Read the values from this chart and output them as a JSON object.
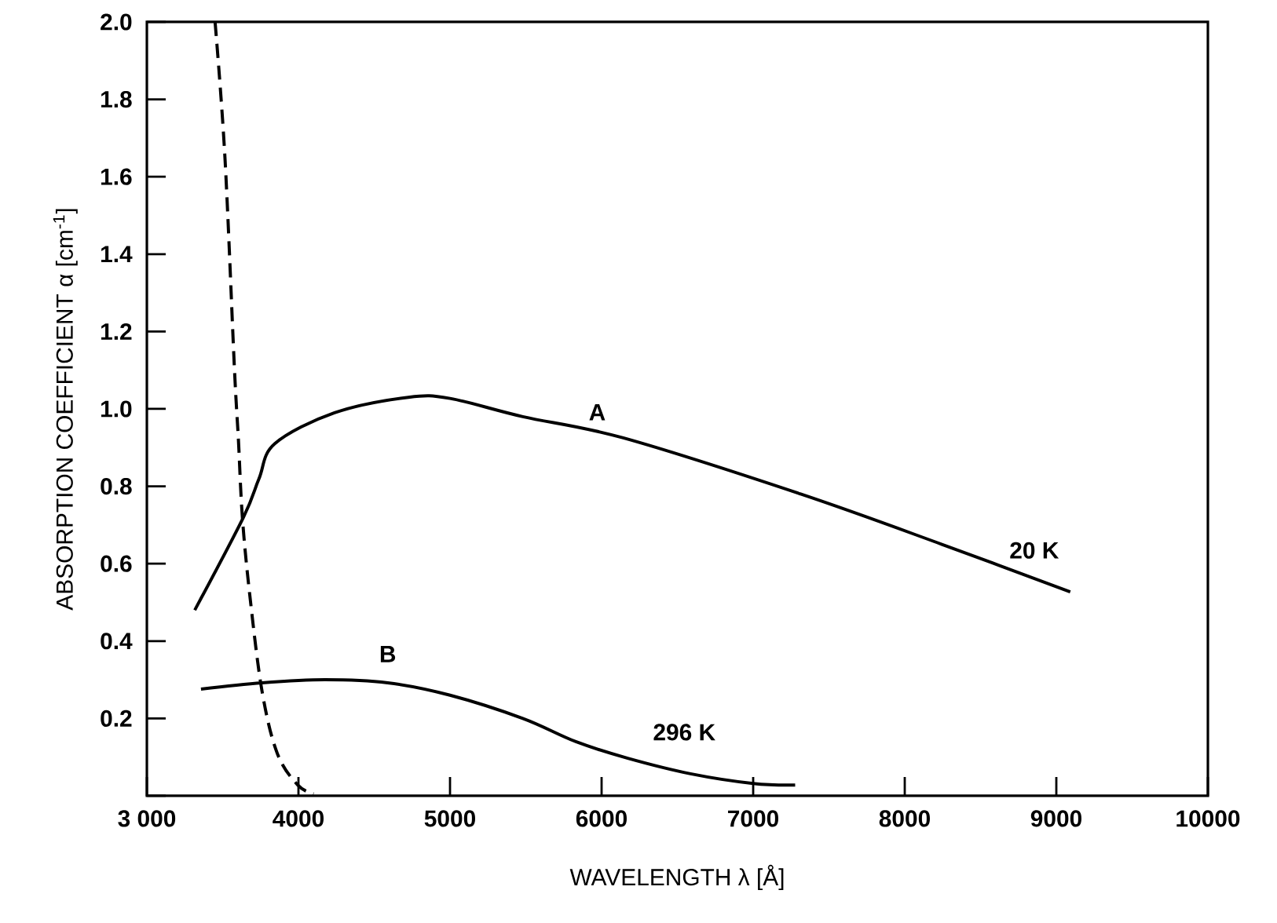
{
  "chart_data": {
    "type": "line",
    "xlabel": "WAVELENGTH λ [Å]",
    "ylabel": "ABSORPTION COEFFICIENT α [cm$^{-1}$]",
    "xlim": [
      3000,
      10000
    ],
    "ylim": [
      0,
      2
    ],
    "xticks": [
      {
        "value": 3000,
        "label": "3 000"
      },
      4000,
      5000,
      6000,
      7000,
      8000,
      9000,
      10000
    ],
    "yticks": [
      {
        "value": 0,
        "label": null
      },
      0.2,
      0.4,
      0.6,
      0.8,
      {
        "value": 1,
        "label": "1.0"
      },
      1.2,
      1.4,
      1.6,
      1.8,
      {
        "value": 2,
        "label": "2.0"
      }
    ],
    "grid": false,
    "marker": "none",
    "series": [
      {
        "color": "#000000",
        "line_style": "solid",
        "x": [
          3316,
          3637,
          3740,
          3844,
          4238,
          4725,
          5000,
          5480,
          6143,
          7313,
          8245,
          9092
        ],
        "values": [
          0.48,
          0.72,
          0.82,
          0.91,
          0.99,
          1.03,
          1.027,
          0.98,
          0.925,
          0.78,
          0.65,
          0.527
        ]
      },
      {
        "color": "#000000",
        "line_style": "solid",
        "x": [
          3357,
          3760,
          4175,
          4589,
          5000,
          5480,
          5830,
          6173,
          6587,
          7000,
          7277
        ],
        "values": [
          0.276,
          0.292,
          0.3,
          0.292,
          0.26,
          0.2,
          0.14,
          0.097,
          0.057,
          0.032,
          0.028
        ]
      },
      {
        "color": "#000000",
        "line_style": "dashed",
        "x": [
          3450,
          3515,
          3577,
          3604,
          3630,
          3680,
          3760,
          3860,
          3995,
          4100
        ],
        "values": [
          2.0,
          1.65,
          1.11,
          0.92,
          0.72,
          0.515,
          0.27,
          0.11,
          0.028,
          0.005
        ]
      }
    ],
    "annotations": [
      "A",
      "B",
      "20 K",
      "296 K"
    ]
  }
}
